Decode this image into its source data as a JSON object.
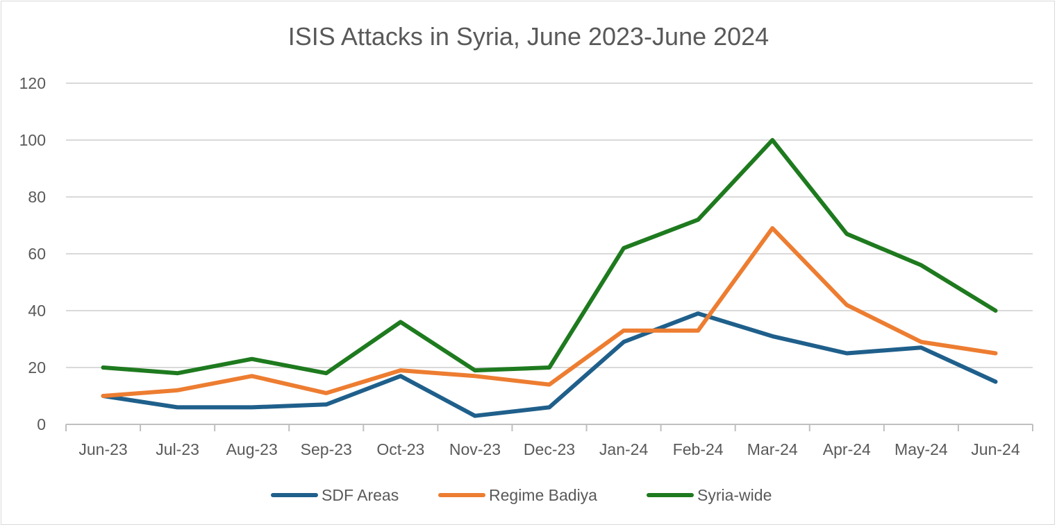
{
  "chart_data": {
    "type": "line",
    "title": "ISIS Attacks in Syria, June 2023-June 2024",
    "xlabel": "",
    "ylabel": "",
    "categories": [
      "Jun-23",
      "Jul-23",
      "Aug-23",
      "Sep-23",
      "Oct-23",
      "Nov-23",
      "Dec-23",
      "Jan-24",
      "Feb-24",
      "Mar-24",
      "Apr-24",
      "May-24",
      "Jun-24"
    ],
    "ylim": [
      0,
      120
    ],
    "yticks": [
      "0",
      "20",
      "40",
      "60",
      "80",
      "100",
      "120"
    ],
    "grid": true,
    "legend_position": "bottom",
    "series": [
      {
        "name": "SDF Areas",
        "color": "#1f5f8b",
        "values": [
          10,
          6,
          6,
          7,
          17,
          3,
          6,
          29,
          39,
          31,
          25,
          27,
          15
        ]
      },
      {
        "name": "Regime Badiya",
        "color": "#ed7d31",
        "values": [
          10,
          12,
          17,
          11,
          19,
          17,
          14,
          33,
          33,
          69,
          42,
          29,
          25
        ]
      },
      {
        "name": "Syria-wide",
        "color": "#1e7a1e",
        "values": [
          20,
          18,
          23,
          18,
          36,
          19,
          20,
          62,
          72,
          100,
          67,
          56,
          40
        ]
      }
    ]
  }
}
